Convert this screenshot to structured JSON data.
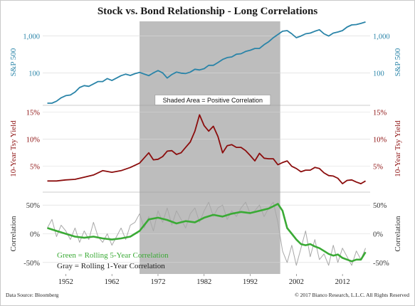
{
  "chart_data": {
    "type": "line",
    "title": "Stock vs. Bond Relationship - Long Correlations",
    "shaded_area": {
      "label": "Shaded Area = Positive Correlation",
      "x_range": [
        1968.0,
        1998.5
      ]
    },
    "x_axis": {
      "range": [
        1947.0,
        2018.0
      ],
      "ticks": [
        1952,
        1962,
        1972,
        1982,
        1992,
        2002,
        2012
      ]
    },
    "source": "Data Source: Bloomberg",
    "copyright": "© 2017 Bianco Research, L.L.C. All Rights Reserved",
    "panels": [
      {
        "name": "sp500",
        "ylabel": "S&P 500",
        "scale": "log",
        "ylim": [
          15,
          2500
        ],
        "ticks": [
          {
            "value": 100,
            "label": "100"
          },
          {
            "value": 1000,
            "label": "1,000"
          }
        ],
        "color": "#2a84a8",
        "series": [
          {
            "x": [
              1948,
              1949,
              1950,
              1951,
              1952,
              1953,
              1954,
              1955,
              1956,
              1957,
              1958,
              1959,
              1960,
              1961,
              1962,
              1963,
              1964,
              1965,
              1966,
              1967,
              1968,
              1969,
              1970,
              1971,
              1972,
              1973,
              1974,
              1975,
              1976,
              1977,
              1978,
              1979,
              1980,
              1981,
              1982,
              1983,
              1984,
              1985,
              1986,
              1987,
              1988,
              1989,
              1990,
              1991,
              1992,
              1993,
              1994,
              1995,
              1996,
              1997,
              1998,
              1999,
              2000,
              2001,
              2002,
              2003,
              2004,
              2005,
              2006,
              2007,
              2008,
              2009,
              2010,
              2011,
              2012,
              2013,
              2014,
              2015,
              2016,
              2017
            ],
            "y": [
              15,
              15,
              17,
              21,
              24,
              25,
              30,
              40,
              45,
              43,
              50,
              58,
              58,
              70,
              62,
              72,
              84,
              92,
              85,
              95,
              103,
              93,
              84,
              100,
              115,
              100,
              72,
              90,
              105,
              98,
              96,
              105,
              125,
              120,
              130,
              160,
              160,
              190,
              230,
              260,
              270,
              320,
              330,
              380,
              410,
              460,
              460,
              580,
              700,
              900,
              1100,
              1350,
              1400,
              1150,
              900,
              1000,
              1150,
              1200,
              1350,
              1480,
              1150,
              1000,
              1200,
              1280,
              1400,
              1750,
              2000,
              2050,
              2200,
              2400
            ]
          }
        ]
      },
      {
        "name": "yield",
        "ylabel": "10-Year Tsy Yield",
        "scale": "linear",
        "ylim": [
          0.5,
          16
        ],
        "ticks": [
          {
            "value": 5,
            "label": "5%"
          },
          {
            "value": 10,
            "label": "10%"
          },
          {
            "value": 15,
            "label": "15%"
          }
        ],
        "color": "#8b0d0d",
        "series": [
          {
            "x": [
              1948,
              1950,
              1952,
              1954,
              1956,
              1958,
              1960,
              1962,
              1964,
              1966,
              1968,
              1970,
              1971,
              1972,
              1973,
              1974,
              1975,
              1976,
              1977,
              1978,
              1979,
              1980,
              1981,
              1982,
              1983,
              1984,
              1985,
              1986,
              1987,
              1988,
              1989,
              1990,
              1991,
              1992,
              1993,
              1994,
              1995,
              1996,
              1997,
              1998,
              1999,
              2000,
              2001,
              2002,
              2003,
              2004,
              2005,
              2006,
              2007,
              2008,
              2009,
              2010,
              2011,
              2012,
              2013,
              2014,
              2015,
              2016,
              2017
            ],
            "y": [
              2.3,
              2.3,
              2.5,
              2.6,
              3.0,
              3.4,
              4.2,
              3.9,
              4.2,
              4.8,
              5.6,
              7.5,
              6.2,
              6.3,
              6.8,
              7.8,
              7.9,
              7.2,
              7.5,
              8.5,
              9.5,
              11.5,
              14.5,
              12.5,
              11.5,
              12.4,
              10.5,
              7.5,
              8.8,
              9.0,
              8.5,
              8.5,
              7.9,
              7.0,
              6.0,
              7.4,
              6.5,
              6.4,
              6.4,
              5.3,
              5.7,
              6.0,
              5.0,
              4.6,
              4.0,
              4.3,
              4.3,
              4.8,
              4.6,
              3.8,
              3.3,
              3.2,
              2.8,
              1.8,
              2.4,
              2.5,
              2.1,
              1.8,
              2.3
            ]
          }
        ]
      },
      {
        "name": "correlation",
        "ylabel": "Correlation",
        "scale": "linear",
        "ylim": [
          -70,
          70
        ],
        "ticks": [
          {
            "value": -50,
            "label": "-50%"
          },
          {
            "value": 0,
            "label": "0%"
          },
          {
            "value": 50,
            "label": "50%"
          }
        ],
        "series": [
          {
            "name": "Rolling 1-Year Correlation",
            "legend": "Gray = Rolling 1-Year Correlation",
            "color": "#a8a8a8",
            "x": [
              1948,
              1949,
              1950,
              1951,
              1952,
              1953,
              1954,
              1955,
              1956,
              1957,
              1958,
              1959,
              1960,
              1961,
              1962,
              1963,
              1964,
              1965,
              1966,
              1967,
              1968,
              1969,
              1970,
              1971,
              1972,
              1973,
              1974,
              1975,
              1976,
              1977,
              1978,
              1979,
              1980,
              1981,
              1982,
              1983,
              1984,
              1985,
              1986,
              1987,
              1988,
              1989,
              1990,
              1991,
              1992,
              1993,
              1994,
              1995,
              1996,
              1997,
              1998,
              1999,
              2000,
              2001,
              2002,
              2003,
              2004,
              2005,
              2006,
              2007,
              2008,
              2009,
              2010,
              2011,
              2012,
              2013,
              2014,
              2015,
              2016,
              2017
            ],
            "y": [
              10,
              25,
              -5,
              15,
              5,
              -10,
              10,
              -15,
              5,
              -10,
              20,
              -5,
              -15,
              0,
              -20,
              -5,
              10,
              -10,
              15,
              20,
              35,
              10,
              30,
              5,
              40,
              20,
              45,
              15,
              40,
              25,
              10,
              35,
              45,
              20,
              40,
              55,
              30,
              45,
              50,
              25,
              40,
              30,
              45,
              55,
              35,
              40,
              50,
              30,
              45,
              55,
              20,
              -30,
              -50,
              -20,
              -55,
              -25,
              5,
              -40,
              -10,
              -45,
              -35,
              -55,
              -20,
              -50,
              -25,
              -40,
              -55,
              -30,
              -45,
              -25
            ]
          },
          {
            "name": "Rolling 5-Year Correlation",
            "legend": "Green = Rolling 5-Year Correlation",
            "color": "#3aaa35",
            "x": [
              1948,
              1950,
              1952,
              1954,
              1956,
              1958,
              1960,
              1962,
              1964,
              1966,
              1968,
              1969,
              1970,
              1972,
              1974,
              1976,
              1978,
              1980,
              1982,
              1984,
              1986,
              1988,
              1990,
              1992,
              1994,
              1996,
              1997,
              1998,
              1999,
              2000,
              2001,
              2002,
              2003,
              2004,
              2005,
              2006,
              2007,
              2008,
              2009,
              2010,
              2011,
              2012,
              2013,
              2014,
              2015,
              2016,
              2017
            ],
            "y": [
              10,
              5,
              0,
              -5,
              -7,
              -5,
              -8,
              -10,
              -8,
              -5,
              5,
              15,
              25,
              28,
              24,
              18,
              22,
              20,
              28,
              33,
              30,
              35,
              38,
              36,
              40,
              44,
              48,
              52,
              40,
              10,
              0,
              -10,
              -18,
              -20,
              -18,
              -22,
              -25,
              -30,
              -35,
              -38,
              -36,
              -42,
              -45,
              -48,
              -45,
              -45,
              -32
            ]
          }
        ]
      }
    ]
  }
}
